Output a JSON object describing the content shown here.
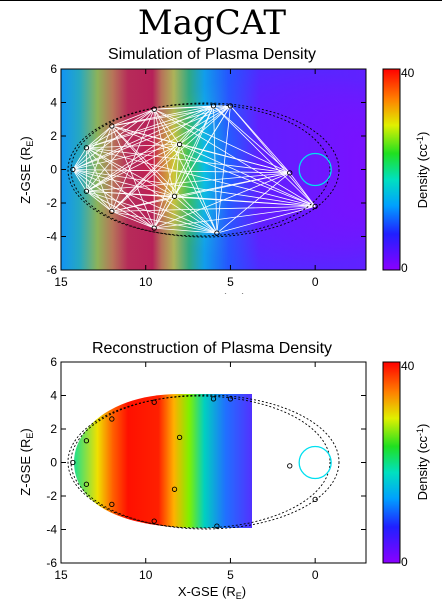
{
  "title": "MagCAT",
  "panels": [
    {
      "id": "top",
      "subtitle": "Simulation of Plasma Density",
      "xlabel": "X-GSE (R",
      "xlabel_sub": "E",
      "ylabel": "Z-GSE (R",
      "ylabel_sub": "E",
      "colorbar": {
        "label": "Density (cc",
        "label_sup": "-1",
        "min": "0",
        "max": "40"
      }
    },
    {
      "id": "bottom",
      "subtitle": "Reconstruction of Plasma Density",
      "xlabel": "X-GSE (R",
      "xlabel_sub": "E",
      "ylabel": "Z-GSE (R",
      "ylabel_sub": "E",
      "colorbar": {
        "label": "Density (cc",
        "label_sup": "-1",
        "min": "0",
        "max": "40"
      }
    }
  ],
  "chart_data": [
    {
      "type": "heatmap",
      "title": "Simulation of Plasma Density",
      "xlabel": "X-GSE (RE)",
      "ylabel": "Z-GSE (RE)",
      "xlim": [
        15,
        -3
      ],
      "ylim": [
        -6,
        6
      ],
      "xticks": [
        15,
        10,
        5,
        0
      ],
      "yticks": [
        -6,
        -4,
        -2,
        0,
        2,
        4,
        6
      ],
      "colorbar": {
        "label": "Density (cc-1)",
        "range": [
          0,
          40
        ],
        "ticks": [
          0,
          40
        ]
      },
      "earth": {
        "x": 0,
        "z": 0,
        "r": 1
      },
      "orbit_points": [
        [
          13.5,
          1.3
        ],
        [
          14.3,
          0
        ],
        [
          13.5,
          -1.3
        ],
        [
          12,
          2.6
        ],
        [
          12,
          -2.5
        ],
        [
          9.5,
          3.6
        ],
        [
          9.5,
          -3.5
        ],
        [
          8,
          1.5
        ],
        [
          8.3,
          -1.6
        ],
        [
          6,
          3.8
        ],
        [
          5.8,
          -3.8
        ],
        [
          5,
          3.8
        ],
        [
          0,
          -2.2
        ],
        [
          1.5,
          -0.2
        ]
      ]
    },
    {
      "type": "heatmap",
      "title": "Reconstruction of Plasma Density",
      "xlabel": "X-GSE (RE)",
      "ylabel": "Z-GSE (RE)",
      "xlim": [
        15,
        -3
      ],
      "ylim": [
        -6,
        6
      ],
      "xticks": [
        15,
        10,
        5,
        0
      ],
      "yticks": [
        -6,
        -4,
        -2,
        0,
        2,
        4,
        6
      ],
      "colorbar": {
        "label": "Density (cc-1)",
        "range": [
          0,
          40
        ],
        "ticks": [
          0,
          40
        ]
      },
      "earth": {
        "x": 0,
        "z": 0,
        "r": 1
      },
      "reconstruction_x_limit": 4
    }
  ]
}
